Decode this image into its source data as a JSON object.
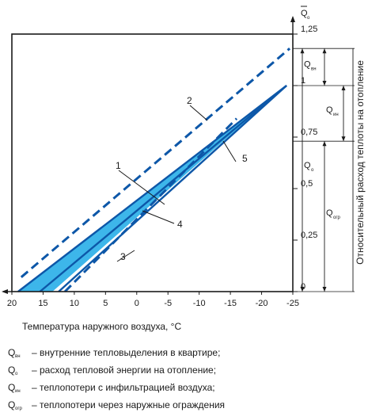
{
  "chart_data": {
    "type": "line",
    "xlabel": "Температура наружного воздуха, °C",
    "ylabel": "Относительный расход теплоты на отопление",
    "y_axis_title": {
      "main": "Q",
      "sub": "о"
    },
    "xlim": [
      20,
      -25
    ],
    "ylim": [
      0,
      1.25
    ],
    "x_ticks": [
      "20",
      "15",
      "10",
      "5",
      "0",
      "-5",
      "-10",
      "-15",
      "-20",
      "-25"
    ],
    "x_tick_values": [
      20,
      15,
      10,
      5,
      0,
      -5,
      -10,
      -15,
      -20,
      -25
    ],
    "y_ticks": [
      "0",
      "0,25",
      "0,5",
      "0,75",
      "1",
      "1,25"
    ],
    "y_tick_values": [
      0,
      0.25,
      0.5,
      0.75,
      1,
      1.25
    ],
    "grid": false,
    "series": [
      {
        "name": "1",
        "style": "solid",
        "x": [
          19,
          -24
        ],
        "y": [
          0,
          1.0
        ]
      },
      {
        "name": "2",
        "style": "dashed",
        "x": [
          18.5,
          -24.5
        ],
        "y": [
          0.07,
          1.18
        ]
      },
      {
        "name": "3",
        "style": "solid",
        "x": [
          12.5,
          -24
        ],
        "y": [
          0,
          1.0
        ]
      },
      {
        "name": "4",
        "style": "solid",
        "x": [
          15.5,
          -24
        ],
        "y": [
          0,
          1.0
        ]
      },
      {
        "name": "5",
        "style": "dashed",
        "x": [
          11.5,
          -16
        ],
        "y": [
          0,
          0.84
        ]
      }
    ],
    "band": {
      "x": [
        19,
        -24,
        13.5
      ],
      "y": [
        0,
        1.0,
        0
      ]
    },
    "annotations": [
      "1",
      "2",
      "3",
      "4",
      "5"
    ],
    "right_brackets": [
      {
        "main": "Q",
        "sub": "вн",
        "from": 1.0,
        "to": 1.18
      },
      {
        "main": "Q",
        "sub": "ин",
        "from": 0.73,
        "to": 1.0
      },
      {
        "main": "Q",
        "sub": "о",
        "from": 0,
        "to": 1.18
      },
      {
        "main": "Q",
        "sub": "огр",
        "from": 0,
        "to": 0.73
      }
    ],
    "colors": {
      "band": "#3db6ea",
      "line": "#0d57a8",
      "axis": "#1a1a1a"
    }
  },
  "legend": [
    {
      "sym": "Q",
      "sub": "вн",
      "text": "– внутренние тепловыделения в квартире;"
    },
    {
      "sym": "Q",
      "sub": "о",
      "text": "– расход тепловой энергии на отопление;"
    },
    {
      "sym": "Q",
      "sub": "ин",
      "text": "– теплопотери с инфильтрацией воздуха;"
    },
    {
      "sym": "Q",
      "sub": "огр",
      "text": "– теплопотери через наружные ограждения"
    }
  ]
}
